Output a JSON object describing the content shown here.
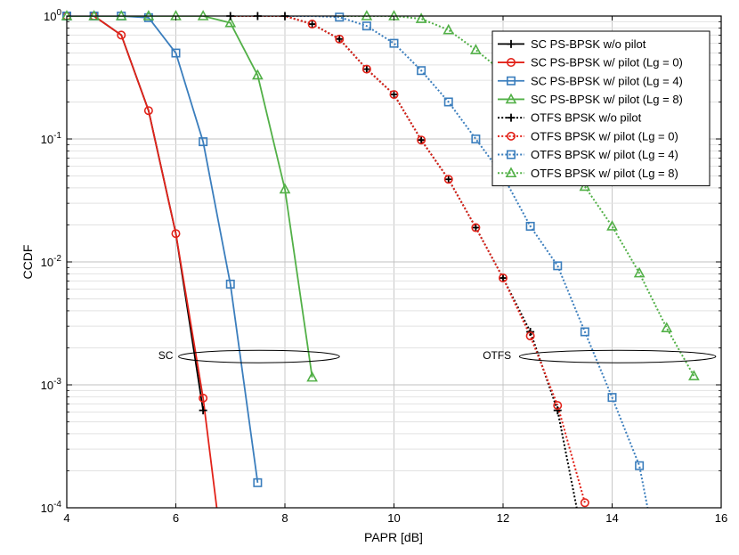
{
  "chart_data": {
    "type": "line",
    "title": "",
    "xlabel": "PAPR [dB]",
    "ylabel": "CCDF",
    "xlim": [
      4,
      16
    ],
    "ylim": [
      0.0001,
      1
    ],
    "yscale": "log",
    "grid": true,
    "legend_position": "top-right",
    "x_ticks": [
      {
        "value": 4,
        "label": "4"
      },
      {
        "value": 6,
        "label": "6"
      },
      {
        "value": 8,
        "label": "8"
      },
      {
        "value": 10,
        "label": "10"
      },
      {
        "value": 12,
        "label": "12"
      },
      {
        "value": 14,
        "label": "14"
      },
      {
        "value": 16,
        "label": "16"
      }
    ],
    "y_ticks": [
      {
        "value": 1,
        "base": "10",
        "exp": "0"
      },
      {
        "value": 0.1,
        "base": "10",
        "exp": "-1"
      },
      {
        "value": 0.01,
        "base": "10",
        "exp": "-2"
      },
      {
        "value": 0.001,
        "base": "10",
        "exp": "-3"
      },
      {
        "value": 0.0001,
        "base": "10",
        "exp": "-4"
      }
    ],
    "series": [
      {
        "name": "SC PS-BPSK w/o pilot",
        "color": "#000000",
        "dash": "solid",
        "marker": "plus",
        "x": [
          4,
          4.5,
          5,
          5.5,
          6,
          6.5
        ],
        "y": [
          1,
          1,
          0.7,
          0.17,
          0.017,
          0.00062
        ],
        "markers_x": [
          6.5
        ],
        "markers_y": [
          0.00062
        ]
      },
      {
        "name": "SC PS-BPSK w/ pilot (Lg = 0)",
        "color": "#e2231a",
        "dash": "solid",
        "marker": "circle",
        "x": [
          4,
          4.5,
          5,
          5.5,
          6,
          6.5,
          6.75
        ],
        "y": [
          1,
          1,
          0.7,
          0.17,
          0.017,
          0.00078,
          0.0001
        ],
        "markers_x": [
          4,
          4.5,
          5,
          5.5,
          6,
          6.5
        ],
        "markers_y": [
          1,
          1,
          0.7,
          0.17,
          0.017,
          0.00078
        ]
      },
      {
        "name": "SC PS-BPSK w/ pilot (Lg = 4)",
        "color": "#3b7ebd",
        "dash": "solid",
        "marker": "square",
        "x": [
          4,
          4.5,
          5,
          5.5,
          6,
          6.5,
          7,
          7.5
        ],
        "y": [
          1,
          1,
          1,
          0.97,
          0.5,
          0.095,
          0.0066,
          0.00016
        ],
        "markers_x": [
          4,
          4.5,
          5,
          5.5,
          6,
          6.5,
          7,
          7.5
        ],
        "markers_y": [
          1,
          1,
          1,
          0.97,
          0.5,
          0.095,
          0.0066,
          0.00016
        ]
      },
      {
        "name": "SC PS-BPSK w/ pilot (Lg = 8)",
        "color": "#52b047",
        "dash": "solid",
        "marker": "triangle",
        "x": [
          4,
          4.5,
          5,
          5.5,
          6,
          6.5,
          7,
          7.5,
          8,
          8.5
        ],
        "y": [
          1,
          1,
          1,
          1,
          1,
          1,
          0.88,
          0.33,
          0.039,
          0.00115
        ],
        "markers_x": [
          4,
          4.5,
          5,
          5.5,
          6,
          6.5,
          7,
          7.5,
          8,
          8.5
        ],
        "markers_y": [
          1,
          1,
          1,
          1,
          1,
          1,
          0.88,
          0.33,
          0.039,
          0.00115
        ]
      },
      {
        "name": "OTFS BPSK w/o pilot",
        "color": "#000000",
        "dash": "dotted",
        "marker": "plus",
        "x": [
          7,
          7.5,
          8,
          8.5,
          9,
          9.5,
          10,
          10.5,
          11,
          11.5,
          12,
          12.5,
          13,
          13.35
        ],
        "y": [
          1,
          1,
          1,
          0.86,
          0.65,
          0.37,
          0.23,
          0.098,
          0.047,
          0.019,
          0.0074,
          0.0027,
          0.00062,
          0.0001
        ],
        "markers_x": [
          7,
          7.5,
          8,
          8.5,
          9,
          9.5,
          10,
          10.5,
          11,
          11.5,
          12,
          12.5,
          13
        ],
        "markers_y": [
          1,
          1,
          1,
          0.86,
          0.65,
          0.37,
          0.23,
          0.098,
          0.047,
          0.019,
          0.0074,
          0.0027,
          0.00062
        ]
      },
      {
        "name": "OTFS BPSK w/ pilot (Lg = 0)",
        "color": "#e2231a",
        "dash": "dotted",
        "marker": "circle",
        "x": [
          7,
          7.5,
          8,
          8.5,
          9,
          9.5,
          10,
          10.5,
          11,
          11.5,
          12,
          12.5,
          13,
          13.5
        ],
        "y": [
          1,
          1,
          1,
          0.86,
          0.65,
          0.37,
          0.23,
          0.098,
          0.047,
          0.019,
          0.0074,
          0.0025,
          0.00068,
          0.00011
        ],
        "markers_x": [
          8.5,
          9,
          9.5,
          10,
          10.5,
          11,
          11.5,
          12,
          12.5,
          13,
          13.5
        ],
        "markers_y": [
          0.86,
          0.65,
          0.37,
          0.23,
          0.098,
          0.047,
          0.019,
          0.0074,
          0.0025,
          0.00068,
          0.00011
        ]
      },
      {
        "name": "OTFS BPSK w/ pilot (Lg = 4)",
        "color": "#3b7ebd",
        "dash": "dotted",
        "marker": "square",
        "x": [
          8,
          8.5,
          9,
          9.5,
          10,
          10.5,
          11,
          11.5,
          12,
          12.5,
          13,
          13.5,
          14,
          14.5,
          14.65
        ],
        "y": [
          1,
          1,
          0.98,
          0.83,
          0.6,
          0.36,
          0.2,
          0.1,
          0.05,
          0.0195,
          0.0093,
          0.0027,
          0.00079,
          0.00022,
          0.0001
        ],
        "markers_x": [
          9,
          9.5,
          10,
          10.5,
          11,
          11.5,
          12,
          12.5,
          13,
          13.5,
          14,
          14.5
        ],
        "markers_y": [
          0.98,
          0.83,
          0.6,
          0.36,
          0.2,
          0.1,
          0.05,
          0.0195,
          0.0093,
          0.0027,
          0.00079,
          0.00022
        ]
      },
      {
        "name": "OTFS BPSK w/ pilot (Lg = 8)",
        "color": "#52b047",
        "dash": "dotted",
        "marker": "triangle",
        "x": [
          9,
          9.5,
          10,
          10.5,
          11,
          11.5,
          12,
          12.5,
          13,
          13.5,
          14,
          14.5,
          15,
          15.5
        ],
        "y": [
          1,
          1,
          1,
          0.95,
          0.77,
          0.53,
          0.35,
          0.2,
          0.1,
          0.041,
          0.0195,
          0.0081,
          0.0029,
          0.00118
        ],
        "markers_x": [
          9.5,
          10,
          10.5,
          11,
          11.5,
          12,
          12.5,
          13,
          13.5,
          14,
          14.5,
          15,
          15.5
        ],
        "markers_y": [
          1,
          1,
          0.95,
          0.77,
          0.53,
          0.35,
          0.2,
          0.1,
          0.041,
          0.0195,
          0.0081,
          0.0029,
          0.00118
        ]
      }
    ],
    "annotations": [
      {
        "text": "SC",
        "ellipse_x": [
          6.05,
          9.0
        ],
        "ellipse_y": 0.0017,
        "text_x": 5.95,
        "text_y": 0.0017
      },
      {
        "text": "OTFS",
        "ellipse_x": [
          12.3,
          15.9
        ],
        "ellipse_y": 0.0017,
        "text_x": 12.15,
        "text_y": 0.0017
      }
    ]
  }
}
